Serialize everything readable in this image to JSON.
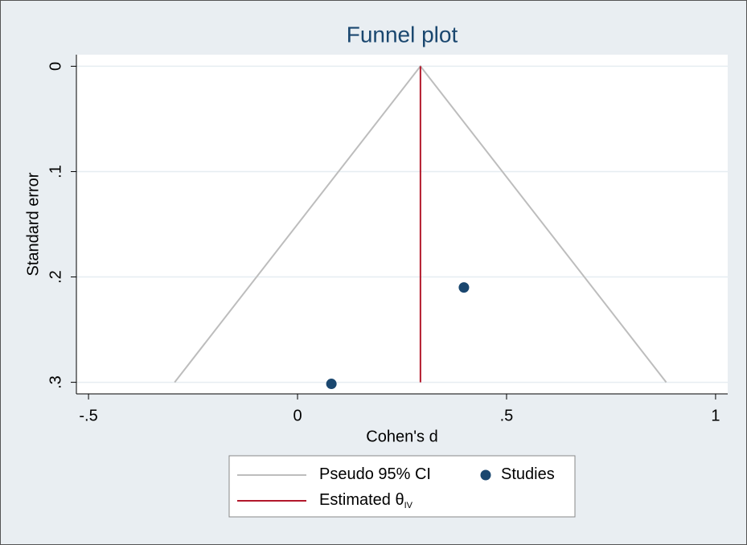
{
  "chart_data": {
    "type": "funnel",
    "title": "Funnel plot",
    "x_label": "Cohen's d",
    "y_label": "Standard error",
    "xlim": [
      -0.529,
      1.029
    ],
    "ylim": [
      -0.011,
      0.311
    ],
    "y_inverted": true,
    "xticks": [
      {
        "value": -0.5,
        "label": "-.5"
      },
      0,
      {
        "value": 0.5,
        "label": ".5"
      },
      1
    ],
    "yticks": [
      0,
      {
        "value": 0.1,
        "label": ".1"
      },
      {
        "value": 0.2,
        "label": ".2"
      },
      {
        "value": 0.3,
        "label": ".3"
      }
    ],
    "grid": true,
    "series": [
      {
        "name": "Pseudo 95% CI",
        "type": "line",
        "color": "#bdbdbd",
        "x": [
          -0.294,
          0.294,
          0.882
        ],
        "y": [
          0.3,
          0,
          0.3
        ]
      },
      {
        "name": "Studies",
        "type": "scatter",
        "color": "#1a476f",
        "x": [
          0.081,
          0.398
        ],
        "y": [
          0.3015,
          0.21
        ]
      },
      {
        "name": "Estimated θ",
        "name_subscript": "IV",
        "type": "line",
        "color": "#b2182b",
        "x": [
          0.294,
          0.294
        ],
        "y": [
          0,
          0.3
        ]
      }
    ]
  }
}
